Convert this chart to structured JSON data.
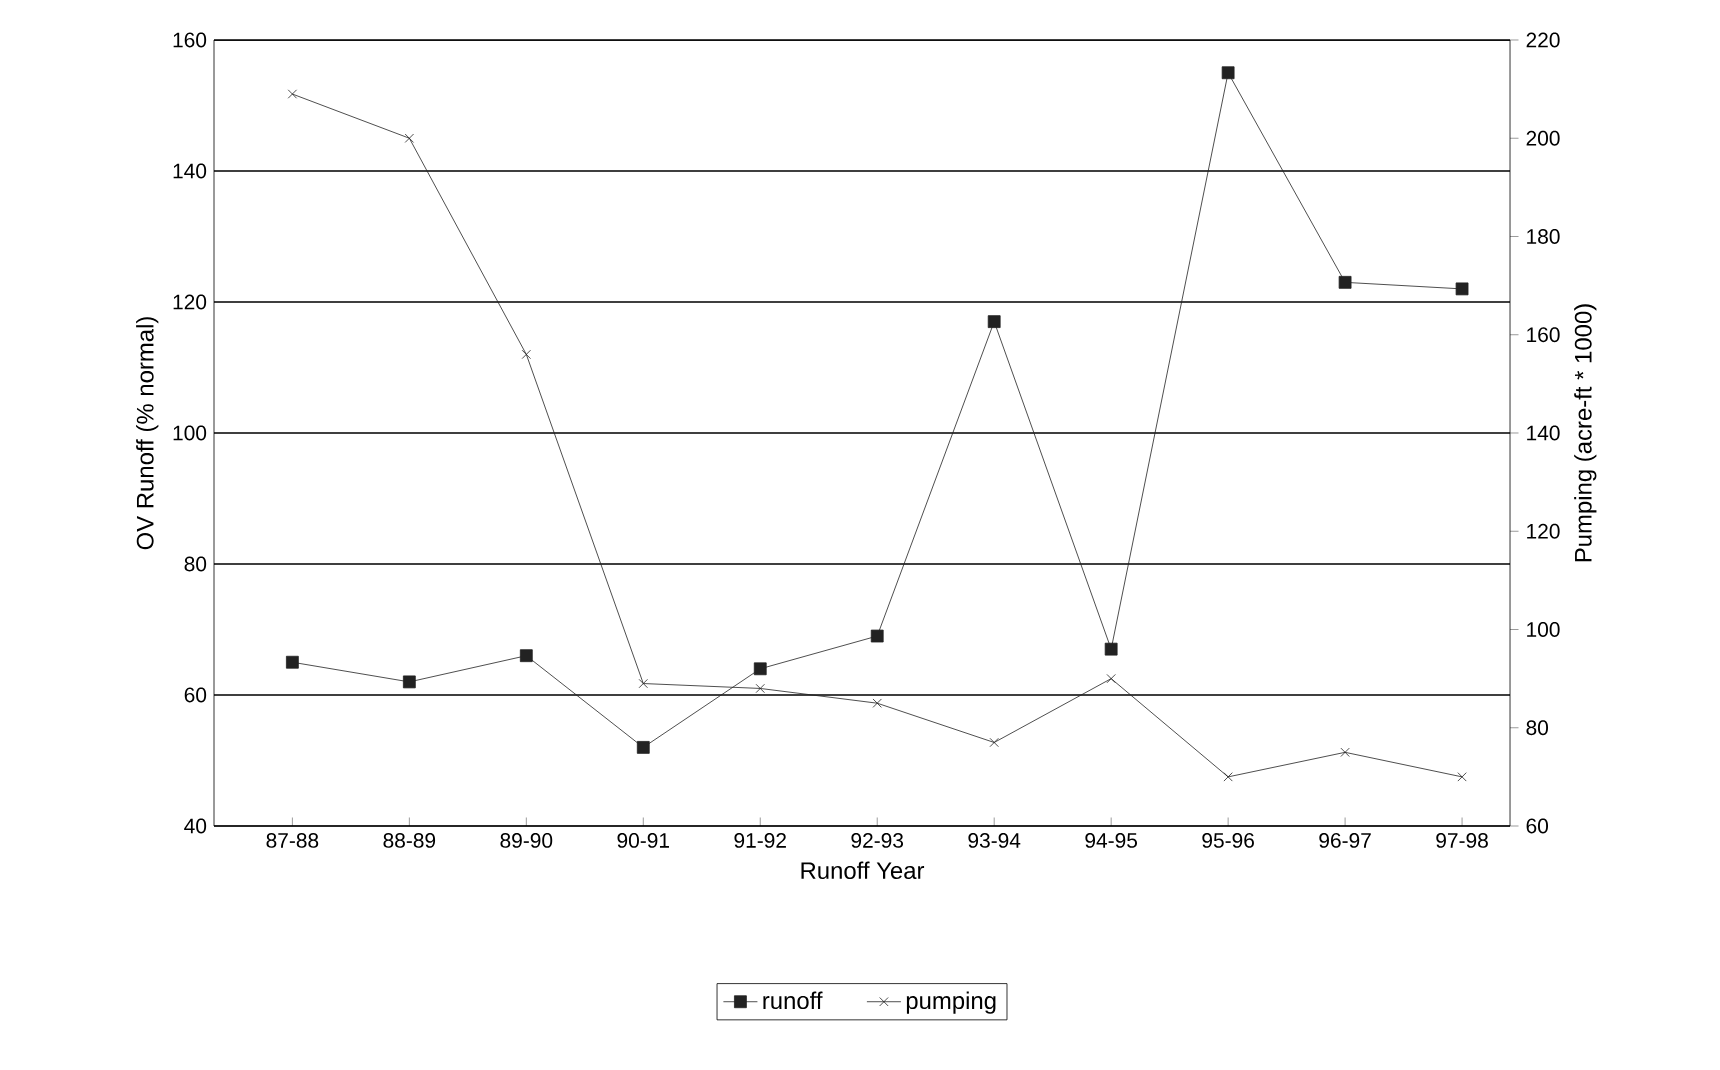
{
  "chart_data": {
    "type": "line",
    "xlabel": "Runoff Year",
    "ylabel": "OV Runoff (% normal)",
    "y2label": "Pumping (acre-ft * 1000)",
    "categories": [
      "87-88",
      "88-89",
      "89-90",
      "90-91",
      "91-92",
      "92-93",
      "93-94",
      "94-95",
      "95-96",
      "96-97",
      "97-98"
    ],
    "series": [
      {
        "name": "runoff",
        "color": "#222222",
        "marker": "square",
        "values": [
          65,
          62,
          66,
          52,
          64,
          69,
          117,
          67,
          155,
          123,
          122
        ]
      },
      {
        "name": "pumping",
        "color": "#222222",
        "marker": "cross",
        "axis": "y2",
        "values": [
          209,
          200,
          156,
          89,
          88,
          85,
          77,
          90,
          70,
          75,
          70
        ]
      }
    ],
    "ylim": [
      40,
      160
    ],
    "yticks": [
      40,
      60,
      80,
      100,
      120,
      140,
      160
    ],
    "y2lim": [
      60,
      220
    ],
    "y2ticks": [
      60,
      80,
      100,
      120,
      140,
      160,
      180,
      200,
      220
    ],
    "grid": "y",
    "legend": "bottom",
    "line_style": "solid"
  }
}
